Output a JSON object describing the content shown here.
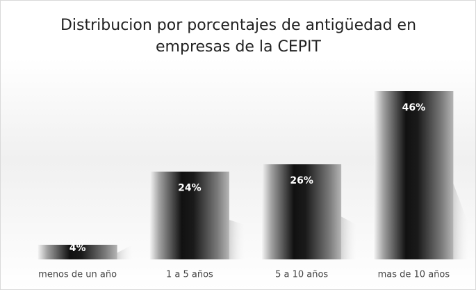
{
  "chart_data": {
    "type": "bar",
    "title": "Distribucion por porcentajes de antigüedad en empresas de la CEPIT",
    "categories": [
      "menos de un año",
      "1 a 5 años",
      "5 a 10 años",
      "mas de 10 años"
    ],
    "values": [
      4,
      24,
      26,
      46
    ],
    "value_labels": [
      "4%",
      "24%",
      "26%",
      "46%"
    ]
  }
}
